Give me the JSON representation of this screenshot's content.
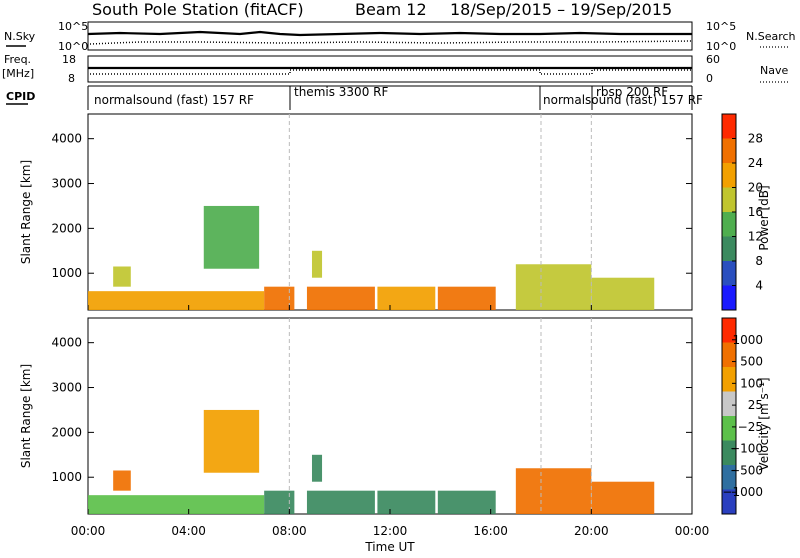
{
  "header": {
    "station": "South Pole Station (fitACF)",
    "beam": "Beam 12",
    "date_range": "18/Sep/2015 – 19/Sep/2015"
  },
  "side_labels": {
    "nsky": "N.Sky",
    "nsearch": "N.Search",
    "freq_top": "Freq.",
    "freq_unit": "[MHz]",
    "nave": "Nave",
    "cpid": "CPID",
    "noise_ticks_left": [
      "10^5",
      "10^0"
    ],
    "noise_ticks_right": [
      "10^5",
      "10^0"
    ],
    "freq_ticks": [
      "18",
      "8"
    ],
    "nave_ticks": [
      "60",
      "0"
    ]
  },
  "cpid_segments": [
    {
      "label": "normalsound (fast) 157 RF",
      "start_hour": 0
    },
    {
      "label": "themis 3300 RF",
      "start_hour": 8
    },
    {
      "label": "normalsound (fast) 157 RF",
      "start_hour": 18
    },
    {
      "label": "rbsp 200 RF",
      "start_hour": 20
    }
  ],
  "chart_data": [
    {
      "type": "heatmap",
      "name": "power-panel",
      "ylabel": "Slant Range [km]",
      "xlabel": "",
      "ylim": [
        180,
        4550
      ],
      "xlim_hours": [
        0,
        24
      ],
      "yticks": [
        1000,
        2000,
        3000,
        4000
      ],
      "colorbar": {
        "label": "Power [dB]",
        "ticks": [
          "28",
          "24",
          "20",
          "16",
          "12",
          "8",
          "4"
        ],
        "colors": [
          "#1a1aff",
          "#2a4fbf",
          "#3b8a5f",
          "#4fae4f",
          "#c0c52f",
          "#f2a000",
          "#f07000",
          "#ff2a00"
        ]
      },
      "features": [
        {
          "t0": 0.0,
          "t1": 7.0,
          "r0": 180,
          "r1": 600,
          "level": 5
        },
        {
          "t0": 7.0,
          "t1": 8.2,
          "r0": 180,
          "r1": 700,
          "level": 6
        },
        {
          "t0": 8.7,
          "t1": 11.4,
          "r0": 180,
          "r1": 700,
          "level": 6
        },
        {
          "t0": 11.5,
          "t1": 13.8,
          "r0": 180,
          "r1": 700,
          "level": 5
        },
        {
          "t0": 13.9,
          "t1": 16.2,
          "r0": 180,
          "r1": 700,
          "level": 6
        },
        {
          "t0": 17.0,
          "t1": 20.0,
          "r0": 180,
          "r1": 1200,
          "level": 4
        },
        {
          "t0": 20.0,
          "t1": 22.5,
          "r0": 180,
          "r1": 900,
          "level": 4
        },
        {
          "t0": 1.0,
          "t1": 1.7,
          "r0": 700,
          "r1": 1150,
          "level": 4
        },
        {
          "t0": 4.6,
          "t1": 6.8,
          "r0": 1100,
          "r1": 2500,
          "level": 3
        },
        {
          "t0": 8.9,
          "t1": 9.3,
          "r0": 900,
          "r1": 1500,
          "level": 4
        }
      ]
    },
    {
      "type": "heatmap",
      "name": "velocity-panel",
      "ylabel": "Slant Range [km]",
      "xlabel": "Time UT",
      "ylim": [
        180,
        4550
      ],
      "xlim_hours": [
        0,
        24
      ],
      "yticks": [
        1000,
        2000,
        3000,
        4000
      ],
      "xticks": [
        "00:00",
        "04:00",
        "08:00",
        "12:00",
        "16:00",
        "20:00",
        "00:00"
      ],
      "colorbar": {
        "label": "Velocity [m s⁻¹]",
        "ticks": [
          "1000",
          "500",
          "100",
          "25",
          "−25",
          "−100",
          "−500",
          "−1000"
        ],
        "colors": [
          "#2a3fbf",
          "#2f6fa0",
          "#3b8a5f",
          "#5cc04a",
          "#c8c8c8",
          "#f2a000",
          "#f07000",
          "#ff2a00"
        ]
      },
      "features": [
        {
          "t0": 0.0,
          "t1": 7.0,
          "r0": 180,
          "r1": 600,
          "level": 3
        },
        {
          "t0": 7.0,
          "t1": 8.2,
          "r0": 180,
          "r1": 700,
          "level": 2
        },
        {
          "t0": 8.7,
          "t1": 11.4,
          "r0": 180,
          "r1": 700,
          "level": 2
        },
        {
          "t0": 11.5,
          "t1": 13.8,
          "r0": 180,
          "r1": 700,
          "level": 2
        },
        {
          "t0": 13.9,
          "t1": 16.2,
          "r0": 180,
          "r1": 700,
          "level": 2
        },
        {
          "t0": 17.0,
          "t1": 20.0,
          "r0": 180,
          "r1": 1200,
          "level": 6
        },
        {
          "t0": 20.0,
          "t1": 22.5,
          "r0": 180,
          "r1": 900,
          "level": 6
        },
        {
          "t0": 1.0,
          "t1": 1.7,
          "r0": 700,
          "r1": 1150,
          "level": 6
        },
        {
          "t0": 4.6,
          "t1": 6.8,
          "r0": 1100,
          "r1": 2500,
          "level": 5
        },
        {
          "t0": 8.9,
          "t1": 9.3,
          "r0": 900,
          "r1": 1500,
          "level": 2
        }
      ]
    }
  ]
}
